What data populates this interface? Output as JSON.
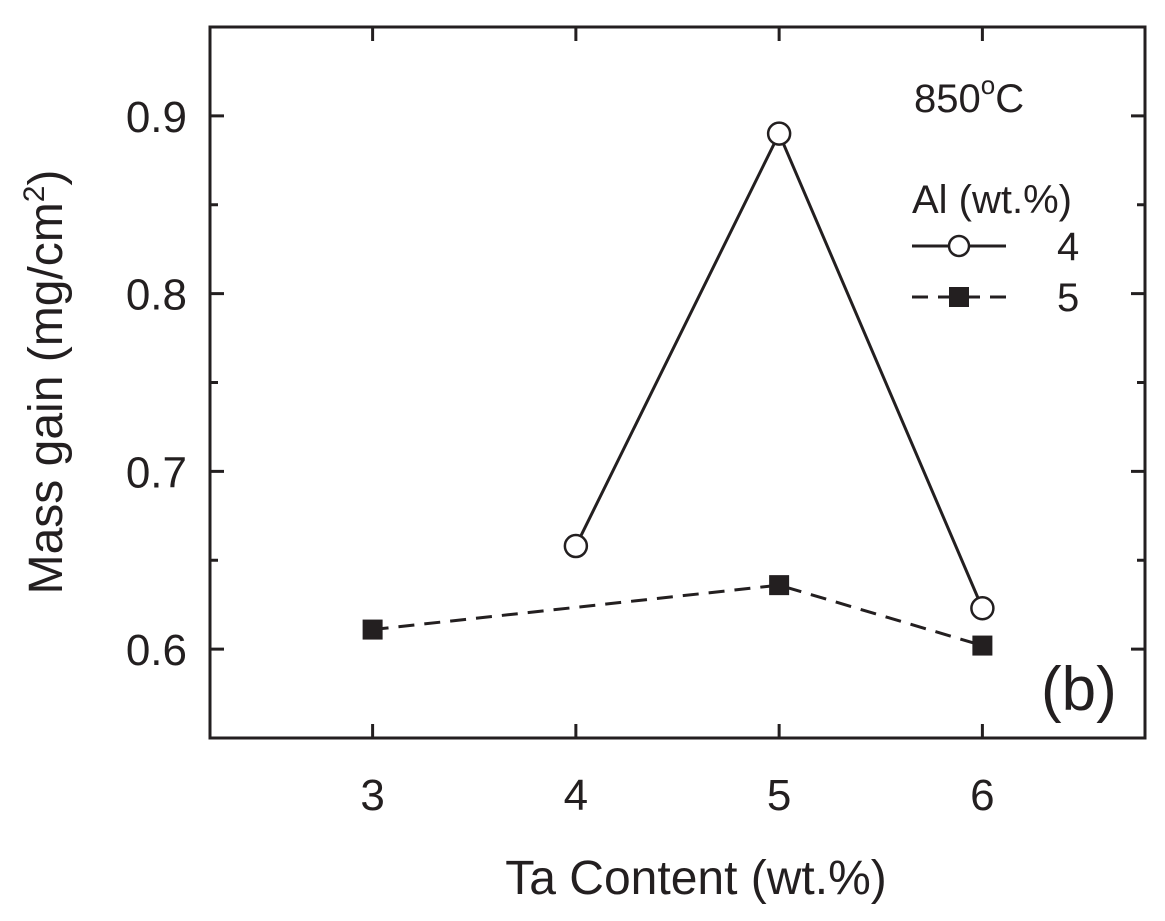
{
  "chart_data": {
    "type": "line",
    "xlabel": "Ta Content (wt.%)",
    "ylabel_main": "Mass gain (mg/cm",
    "ylabel_sup": "2",
    "ylabel_close": ")",
    "xlim": [
      2.2,
      6.8
    ],
    "ylim": [
      0.55,
      0.95
    ],
    "x_ticks": [
      3,
      4,
      5,
      6
    ],
    "x_tick_labels": [
      "3",
      "4",
      "5",
      "6"
    ],
    "y_ticks": [
      0.6,
      0.7,
      0.8,
      0.9
    ],
    "y_tick_labels": [
      "0.6",
      "0.7",
      "0.8",
      "0.9"
    ],
    "y_minor_ticks": [
      0.65,
      0.75,
      0.85
    ],
    "temperature_main": "850",
    "temperature_degree": "o",
    "temperature_unit": "C",
    "legend_title": "Al  (wt.%)",
    "panel_label": "(b)",
    "legend_placement": "top-right",
    "grid": false,
    "series": [
      {
        "name": "4",
        "marker": "open-circle",
        "linestyle": "solid",
        "color": "#231f20",
        "x": [
          4,
          5,
          6
        ],
        "y": [
          0.658,
          0.89,
          0.623
        ]
      },
      {
        "name": "5",
        "marker": "filled-square",
        "linestyle": "dashed",
        "color": "#231f20",
        "x": [
          3,
          5,
          6
        ],
        "y": [
          0.611,
          0.636,
          0.602
        ]
      }
    ]
  }
}
